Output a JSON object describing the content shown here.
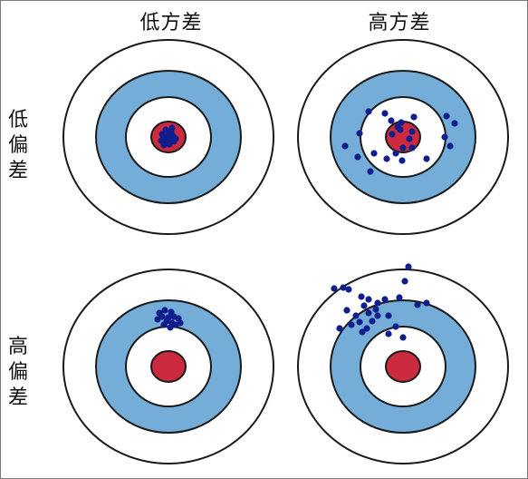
{
  "labels": {
    "low_variance": "低方差",
    "high_variance": "高方差",
    "low_bias": [
      "低",
      "偏",
      "差"
    ],
    "high_bias": [
      "高",
      "偏",
      "差"
    ]
  },
  "colors": {
    "ring_white": "#ffffff",
    "ring_blue": "#74aed8",
    "bullseye": "#cc2a3e",
    "outline": "#1a1a1a",
    "dot": "#0f1e8c",
    "border": "#7a7a7a"
  },
  "targets": [
    {
      "id": "low-bias-low-variance",
      "dots": [
        [
          -3,
          -8
        ],
        [
          3,
          -6
        ],
        [
          -7,
          -3
        ],
        [
          0,
          -2
        ],
        [
          5,
          -1
        ],
        [
          -4,
          2
        ],
        [
          2,
          3
        ],
        [
          -8,
          4
        ],
        [
          6,
          5
        ],
        [
          -2,
          6
        ],
        [
          1,
          8
        ],
        [
          -5,
          9
        ],
        [
          4,
          -10
        ],
        [
          8,
          2
        ]
      ]
    },
    {
      "id": "low-bias-high-variance",
      "dots": [
        [
          -38,
          -28
        ],
        [
          -20,
          -26
        ],
        [
          -13,
          -18
        ],
        [
          -2,
          -16
        ],
        [
          12,
          -22
        ],
        [
          48,
          -23
        ],
        [
          57,
          -15
        ],
        [
          -48,
          -4
        ],
        [
          -12,
          -3
        ],
        [
          -3,
          -8
        ],
        [
          10,
          -6
        ],
        [
          46,
          0
        ],
        [
          52,
          10
        ],
        [
          -64,
          10
        ],
        [
          -50,
          22
        ],
        [
          -32,
          18
        ],
        [
          -18,
          24
        ],
        [
          -8,
          18
        ],
        [
          0,
          12
        ],
        [
          10,
          12
        ],
        [
          -1,
          26
        ],
        [
          -6,
          -11
        ],
        [
          7,
          2
        ],
        [
          -36,
          38
        ],
        [
          26,
          24
        ]
      ]
    },
    {
      "id": "high-bias-low-variance",
      "dots": [
        [
          -10,
          -59
        ],
        [
          -4,
          -62
        ],
        [
          3,
          -60
        ],
        [
          -7,
          -55
        ],
        [
          0,
          -54
        ],
        [
          6,
          -55
        ],
        [
          11,
          -53
        ],
        [
          -2,
          -50
        ],
        [
          4,
          -48
        ],
        [
          -5,
          -46
        ],
        [
          8,
          -46
        ],
        [
          13,
          -48
        ],
        [
          2,
          -43
        ],
        [
          -12,
          -52
        ]
      ]
    },
    {
      "id": "high-bias-high-variance",
      "dots": [
        [
          -76,
          -86
        ],
        [
          -66,
          -87
        ],
        [
          -60,
          -85
        ],
        [
          -46,
          -77
        ],
        [
          -38,
          -74
        ],
        [
          -28,
          -70
        ],
        [
          -20,
          -74
        ],
        [
          -30,
          -63
        ],
        [
          -38,
          -59
        ],
        [
          -34,
          -50
        ],
        [
          -48,
          -49
        ],
        [
          -57,
          -46
        ],
        [
          -70,
          -42
        ],
        [
          -43,
          -67
        ],
        [
          -40,
          -42
        ],
        [
          -16,
          -56
        ],
        [
          -8,
          -44
        ],
        [
          -4,
          -76
        ],
        [
          2,
          -94
        ],
        [
          6,
          -110
        ],
        [
          16,
          -68
        ],
        [
          26,
          -70
        ],
        [
          0,
          -32
        ],
        [
          -16,
          -36
        ],
        [
          -28,
          -56
        ],
        [
          -52,
          -56
        ],
        [
          -62,
          -62
        ],
        [
          -45,
          -38
        ]
      ]
    }
  ]
}
